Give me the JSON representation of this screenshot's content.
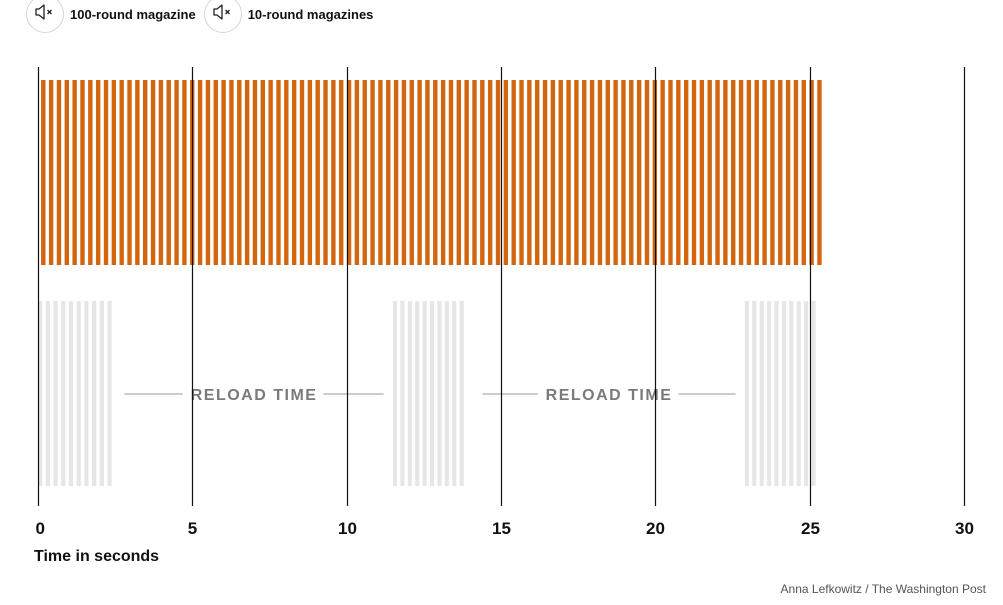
{
  "toggles": [
    {
      "label": "100-round magazine",
      "icon": "speaker-muted-icon"
    },
    {
      "label": "10-round magazines",
      "icon": "speaker-muted-icon"
    }
  ],
  "credit": "Anna Lefkowitz / The Washington Post",
  "colors": {
    "orange": "#d4650f",
    "gray": "#e6e6e6",
    "gridline": "#111111",
    "reload_text": "#7a7a7a"
  },
  "chart_data": {
    "type": "bar",
    "xlabel": "Time in seconds",
    "xlim": [
      0,
      30
    ],
    "xticks": [
      0,
      5,
      10,
      15,
      20,
      25,
      30
    ],
    "grid": true,
    "series": [
      {
        "name": "100-round magazine",
        "shots": 100,
        "start": 0.1,
        "end": 25.5
      },
      {
        "name": "10-round magazines",
        "bursts": [
          {
            "shots": 10,
            "start": 0.0,
            "end": 2.5
          },
          {
            "shots": 10,
            "start": 11.5,
            "end": 13.9
          },
          {
            "shots": 10,
            "start": 22.9,
            "end": 25.3
          }
        ]
      }
    ],
    "annotations": [
      {
        "text": "RELOAD TIME",
        "from": 2.8,
        "to": 11.2
      },
      {
        "text": "RELOAD TIME",
        "from": 14.4,
        "to": 22.6
      }
    ]
  }
}
